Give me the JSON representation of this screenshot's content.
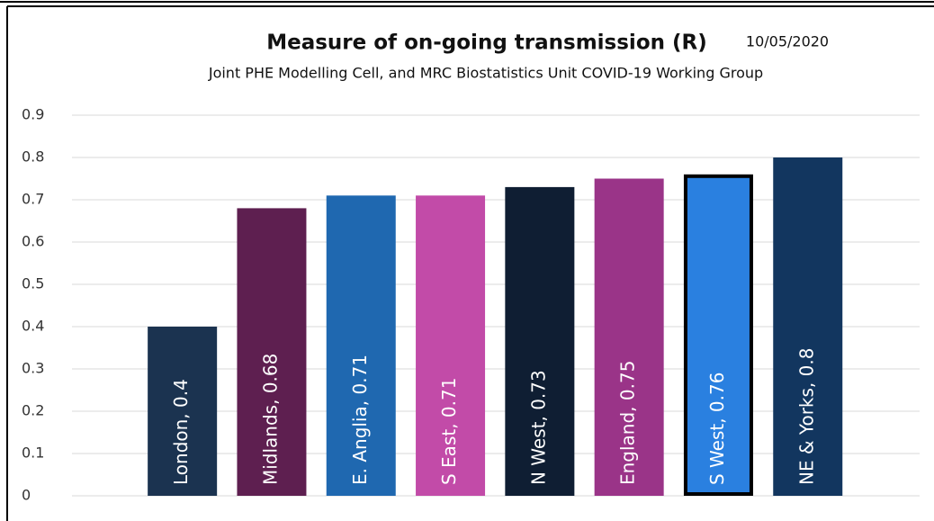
{
  "chart_data": {
    "type": "bar",
    "title": "Measure of on-going transmission (R)",
    "date": "10/05/2020",
    "subtitle": "Joint PHE Modelling Cell, and MRC Biostatistics Unit COVID-19 Working Group",
    "categories": [
      "London",
      "Midlands",
      "E. Anglia",
      "S East",
      "N West",
      "England",
      "S West",
      "NE & Yorks"
    ],
    "values": [
      0.4,
      0.68,
      0.71,
      0.71,
      0.73,
      0.75,
      0.76,
      0.8
    ],
    "value_labels": [
      "London, 0.4",
      "Midlands, 0.68",
      "E. Anglia, 0.71",
      "S East, 0.71",
      "N West, 0.73",
      "England, 0.75",
      "S West, 0.76",
      "NE & Yorks, 0.8"
    ],
    "colors": [
      "#1b3350",
      "#5e1f50",
      "#1f68b0",
      "#c24ba8",
      "#0f1e33",
      "#9a3488",
      "#2a80e0",
      "#12365f"
    ],
    "edgecolors": [
      null,
      null,
      null,
      null,
      null,
      null,
      "#000000",
      null
    ],
    "ylim": [
      0,
      0.9
    ],
    "yticks": [
      0,
      0.1,
      0.2,
      0.3,
      0.4,
      0.5,
      0.6,
      0.7,
      0.8,
      0.9
    ],
    "grid": true
  }
}
